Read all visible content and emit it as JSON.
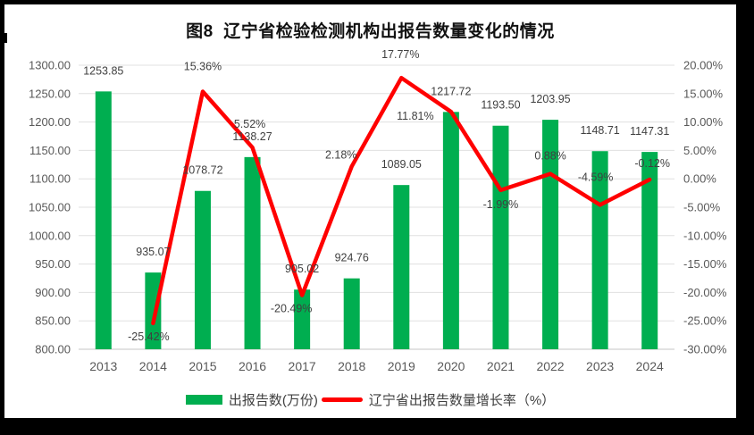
{
  "title": "图8  辽宁省检验检测机构出报告数量变化的情况",
  "colors": {
    "bar": "#00AE50",
    "line": "#FF0000",
    "grid": "#E0E0E0",
    "axis_line": "#C6C6C6",
    "axis_text": "#595959",
    "data_label": "#404040",
    "background": "#FFFFFF",
    "frame": "#000000"
  },
  "chart_data": {
    "type": "bar+line combo",
    "title": "图8  辽宁省检验检测机构出报告数量变化的情况",
    "categories": [
      "2013",
      "2014",
      "2015",
      "2016",
      "2017",
      "2018",
      "2019",
      "2020",
      "2021",
      "2022",
      "2023",
      "2024"
    ],
    "series": [
      {
        "name": "出报告数(万份)",
        "type": "bar",
        "axis": "left",
        "values": [
          1253.85,
          935.07,
          1078.72,
          1138.27,
          905.02,
          924.76,
          1089.05,
          1217.72,
          1193.5,
          1203.95,
          1148.71,
          1147.31
        ],
        "labels": [
          "1253.85",
          "935.07",
          "1078.72",
          "1138.27",
          "905.02",
          "924.76",
          "1089.05",
          "1217.72",
          "1193.50",
          "1203.95",
          "1148.71",
          "1147.31"
        ]
      },
      {
        "name": "辽宁省出报告数量增长率（%）",
        "type": "line",
        "axis": "right",
        "values": [
          null,
          -25.42,
          15.36,
          5.52,
          -20.49,
          2.18,
          17.77,
          11.81,
          -1.99,
          0.88,
          -4.59,
          -0.12
        ],
        "labels": [
          null,
          "-25.42%",
          "15.36%",
          "5.52%",
          "-20.49%",
          "2.18%",
          "17.77%",
          "11.81%",
          "-1.99%",
          "0.88%",
          "-4.59%",
          "-0.12%"
        ],
        "label_offsets": [
          null,
          [
            -5,
            15
          ],
          [
            0,
            -28
          ],
          [
            -3,
            -26
          ],
          [
            -12,
            15
          ],
          [
            -12,
            -13
          ],
          [
            -1,
            -26
          ],
          [
            -40,
            5
          ],
          [
            0,
            16
          ],
          [
            0,
            -20
          ],
          [
            -5,
            -31
          ],
          [
            3,
            -18
          ]
        ]
      }
    ],
    "left_axis": {
      "min": 800,
      "max": 1300,
      "step": 50,
      "ticks": [
        "1300.00",
        "1250.00",
        "1200.00",
        "1150.00",
        "1100.00",
        "1050.00",
        "1000.00",
        "950.00",
        "900.00",
        "850.00",
        "800.00"
      ]
    },
    "right_axis": {
      "min": -30,
      "max": 20,
      "step": 5,
      "ticks": [
        "20.00%",
        "15.00%",
        "10.00%",
        "5.00%",
        "0.00%",
        "-5.00%",
        "-10.00%",
        "-15.00%",
        "-20.00%",
        "-25.00%",
        "-30.00%"
      ]
    },
    "grid": true,
    "legend_position": "bottom"
  }
}
